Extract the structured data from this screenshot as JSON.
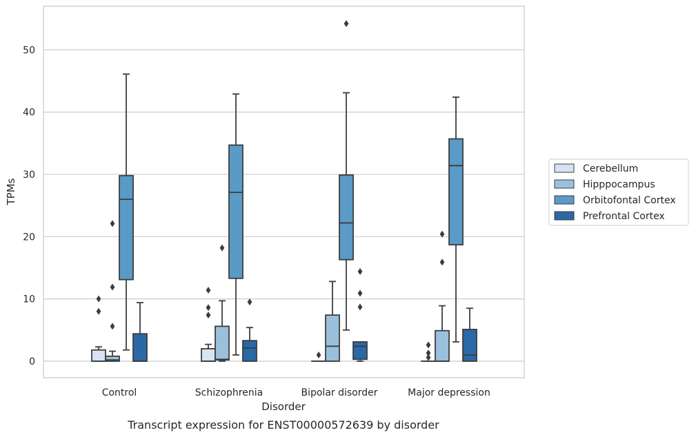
{
  "chart_data": {
    "type": "box",
    "title": "",
    "caption": "Transcript expression for ENST00000572639 by disorder",
    "xlabel": "Disorder",
    "ylabel": "TPMs",
    "ylim": [
      -2.6,
      56.5
    ],
    "yticks": [
      0,
      10,
      20,
      30,
      40,
      50
    ],
    "grid": "horizontal",
    "legend_position": "right",
    "categories": [
      "Control",
      "Schizophrenia",
      "Bipolar disorder",
      "Major depression"
    ],
    "series": [
      {
        "name": "Cerebellum",
        "color": "#d5e3f2",
        "boxes": [
          {
            "whislo": 0,
            "q1": 0,
            "med": 0,
            "q3": 1.8,
            "whishi": 2.3,
            "fliers": [
              10.0,
              8.0
            ]
          },
          {
            "whislo": 0,
            "q1": 0,
            "med": 0,
            "q3": 2.0,
            "whishi": 2.7,
            "fliers": [
              11.4,
              8.6,
              7.4
            ]
          },
          {
            "whislo": 0,
            "q1": 0,
            "med": 0,
            "q3": 0,
            "whishi": 0,
            "fliers": [
              1.0
            ]
          },
          {
            "whislo": 0,
            "q1": 0,
            "med": 0,
            "q3": 0,
            "whishi": 0,
            "fliers": [
              2.6,
              1.3,
              0.6
            ]
          }
        ]
      },
      {
        "name": "Hipppocampus",
        "color": "#9ac0db",
        "boxes": [
          {
            "whislo": 0,
            "q1": 0,
            "med": 0.2,
            "q3": 0.8,
            "whishi": 1.6,
            "fliers": [
              22.1,
              11.9,
              5.6
            ]
          },
          {
            "whislo": 0,
            "q1": 0.2,
            "med": 0.3,
            "q3": 5.6,
            "whishi": 9.7,
            "fliers": [
              18.2
            ]
          },
          {
            "whislo": 0,
            "q1": 0,
            "med": 2.4,
            "q3": 7.4,
            "whishi": 12.8,
            "fliers": []
          },
          {
            "whislo": 0,
            "q1": 0,
            "med": 0,
            "q3": 4.9,
            "whishi": 8.9,
            "fliers": [
              20.4,
              15.9
            ]
          }
        ]
      },
      {
        "name": "Orbitofontal Cortex",
        "color": "#5a9ac6",
        "boxes": [
          {
            "whislo": 1.8,
            "q1": 13.1,
            "med": 26.0,
            "q3": 29.8,
            "whishi": 46.1,
            "fliers": []
          },
          {
            "whislo": 1.0,
            "q1": 13.3,
            "med": 27.1,
            "q3": 34.7,
            "whishi": 42.9,
            "fliers": []
          },
          {
            "whislo": 5.0,
            "q1": 16.3,
            "med": 22.2,
            "q3": 29.9,
            "whishi": 43.1,
            "fliers": [
              54.2
            ]
          },
          {
            "whislo": 3.1,
            "q1": 18.7,
            "med": 31.4,
            "q3": 35.7,
            "whishi": 42.4,
            "fliers": []
          }
        ]
      },
      {
        "name": "Prefrontal Cortex",
        "color": "#2a68a6",
        "boxes": [
          {
            "whislo": 0,
            "q1": 0,
            "med": 0,
            "q3": 4.4,
            "whishi": 9.4,
            "fliers": []
          },
          {
            "whislo": 0,
            "q1": 0,
            "med": 2.1,
            "q3": 3.3,
            "whishi": 5.4,
            "fliers": [
              9.5
            ]
          },
          {
            "whislo": 0,
            "q1": 0.3,
            "med": 2.4,
            "q3": 3.1,
            "whishi": 3.1,
            "fliers": [
              14.4,
              10.9,
              8.7
            ]
          },
          {
            "whislo": 0,
            "q1": 0,
            "med": 1.0,
            "q3": 5.1,
            "whishi": 8.5,
            "fliers": []
          }
        ]
      }
    ]
  }
}
